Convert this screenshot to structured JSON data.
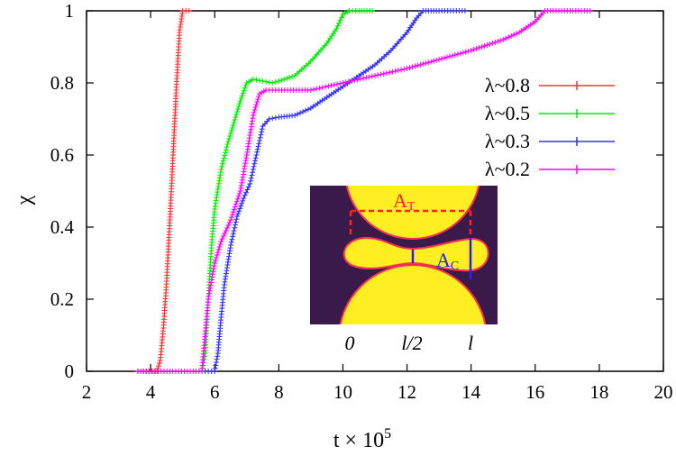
{
  "chart_data": {
    "type": "line",
    "xlabel": "t × 10",
    "xlabel_exp": "5",
    "ylabel": "χ",
    "xlim": [
      2,
      20
    ],
    "ylim": [
      0,
      1
    ],
    "x_ticks": [
      "2",
      "4",
      "6",
      "8",
      "10",
      "12",
      "14",
      "16",
      "18",
      "20"
    ],
    "y_ticks": [
      "0",
      "0.2",
      "0.4",
      "0.6",
      "0.8",
      "1"
    ],
    "legend_position": "right",
    "series": [
      {
        "name": "λ~0.8",
        "color": "#ff3030",
        "x": [
          3.6,
          4.2,
          4.3,
          4.4,
          4.5,
          4.6,
          4.7,
          4.8,
          4.9,
          5.0,
          5.3
        ],
        "y": [
          0,
          0,
          0.03,
          0.12,
          0.25,
          0.42,
          0.6,
          0.78,
          0.94,
          1.0,
          1.0
        ]
      },
      {
        "name": "λ~0.5",
        "color": "#00ee00",
        "x": [
          5.6,
          5.7,
          5.8,
          5.9,
          6.0,
          6.2,
          6.4,
          6.6,
          6.8,
          7.0,
          7.2,
          7.5,
          7.8,
          8.0,
          8.5,
          9.0,
          9.5,
          9.8,
          10.0,
          10.2,
          10.5,
          11.0
        ],
        "y": [
          0,
          0.05,
          0.2,
          0.35,
          0.45,
          0.56,
          0.63,
          0.69,
          0.75,
          0.8,
          0.81,
          0.805,
          0.8,
          0.805,
          0.82,
          0.86,
          0.91,
          0.95,
          0.99,
          1.0,
          1.0,
          1.0
        ]
      },
      {
        "name": "λ~0.3",
        "color": "#3030ff",
        "x": [
          5.7,
          6.0,
          6.1,
          6.2,
          6.3,
          6.5,
          6.7,
          6.9,
          7.1,
          7.3,
          7.5,
          7.7,
          8.0,
          8.5,
          9.0,
          9.5,
          10.0,
          10.5,
          11.0,
          11.5,
          12.0,
          12.3,
          12.5,
          13.0,
          13.9
        ],
        "y": [
          0,
          0,
          0.05,
          0.15,
          0.24,
          0.35,
          0.43,
          0.48,
          0.52,
          0.6,
          0.68,
          0.7,
          0.705,
          0.71,
          0.73,
          0.76,
          0.79,
          0.82,
          0.85,
          0.89,
          0.94,
          0.98,
          1.0,
          1.0,
          1.0
        ]
      },
      {
        "name": "λ~0.2",
        "color": "#ff00ff",
        "x": [
          3.6,
          5.6,
          5.8,
          6.0,
          6.2,
          6.5,
          6.8,
          7.0,
          7.2,
          7.4,
          7.6,
          8.0,
          9.0,
          10.0,
          11.0,
          12.0,
          13.0,
          14.0,
          15.0,
          15.5,
          16.0,
          16.3,
          17.0,
          17.8
        ],
        "y": [
          0,
          0,
          0.2,
          0.3,
          0.36,
          0.42,
          0.5,
          0.6,
          0.71,
          0.77,
          0.78,
          0.78,
          0.78,
          0.8,
          0.82,
          0.84,
          0.865,
          0.89,
          0.92,
          0.94,
          0.97,
          1.0,
          1.0,
          1.0
        ]
      }
    ],
    "inset": {
      "labels": {
        "a_t": "A",
        "a_t_sub": "T",
        "a_c": "A",
        "a_c_sub": "C",
        "x0": "0",
        "xhalf": "l/2",
        "xl": "l"
      },
      "colors": {
        "background": "#3a1a4a",
        "droplet": "#ffee22",
        "outline": "#ff2020",
        "dashed": "#ff2020",
        "neck": "#2020ff"
      }
    }
  }
}
